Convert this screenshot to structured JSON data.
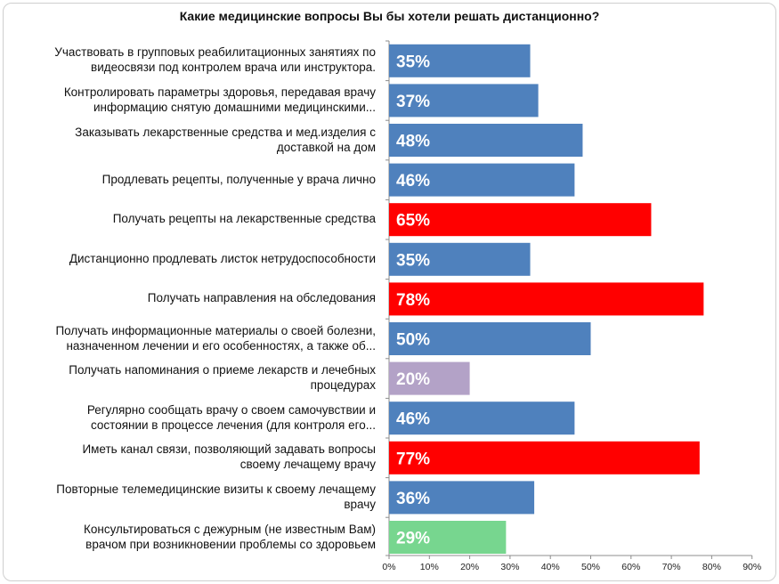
{
  "chart_data": {
    "type": "bar",
    "orientation": "horizontal",
    "title": "Какие медицинские вопросы Вы бы хотели решать дистанционно?",
    "xlabel": "",
    "ylabel": "",
    "xlim": [
      0,
      90
    ],
    "x_ticks": [
      "0%",
      "10%",
      "20%",
      "30%",
      "40%",
      "50%",
      "60%",
      "70%",
      "80%",
      "90%"
    ],
    "grid": false,
    "legend": "none",
    "categories": [
      [
        "Участвовать в групповых реабилитационных занятиях по",
        "видеосвязи под контролем врача или инструктора."
      ],
      [
        "Контролировать параметры здоровья, передавая врачу",
        "информацию снятую домашними медицинскими..."
      ],
      [
        "Заказывать лекарственные средства и мед.изделия  с",
        "доставкой на дом"
      ],
      [
        "Продлевать рецепты, полученные у врача лично"
      ],
      [
        "Получать рецепты на лекарственные средства"
      ],
      [
        "Дистанционно продлевать листок нетрудоспособности"
      ],
      [
        "Получать направления на обследования"
      ],
      [
        "Получать информационные материалы о своей болезни,",
        "назначенном лечении и его особенностях, а также об..."
      ],
      [
        "Получать напоминания о приеме лекарств и лечебных",
        "процедурах"
      ],
      [
        "Регулярно сообщать врачу о своем самочувствии и",
        "состоянии в процессе лечения (для контроля его..."
      ],
      [
        "Иметь канал связи, позволяющий задавать вопросы",
        "своему лечащему врачу"
      ],
      [
        "Повторные телемедицинские визиты к своему лечащему",
        "врачу"
      ],
      [
        "Консультироваться с дежурным (не известным Вам)",
        "врачом при возникновении проблемы со здоровьем"
      ]
    ],
    "values": [
      35,
      37,
      48,
      46,
      65,
      35,
      78,
      50,
      20,
      46,
      77,
      36,
      29
    ],
    "data_labels": [
      "35%",
      "37%",
      "48%",
      "46%",
      "65%",
      "35%",
      "78%",
      "50%",
      "20%",
      "46%",
      "77%",
      "36%",
      "29%"
    ],
    "bar_colors": [
      "#4f81bd",
      "#4f81bd",
      "#4f81bd",
      "#4f81bd",
      "#ff0000",
      "#4f81bd",
      "#ff0000",
      "#4f81bd",
      "#b3a2c7",
      "#4f81bd",
      "#ff0000",
      "#4f81bd",
      "#77d68f"
    ]
  }
}
